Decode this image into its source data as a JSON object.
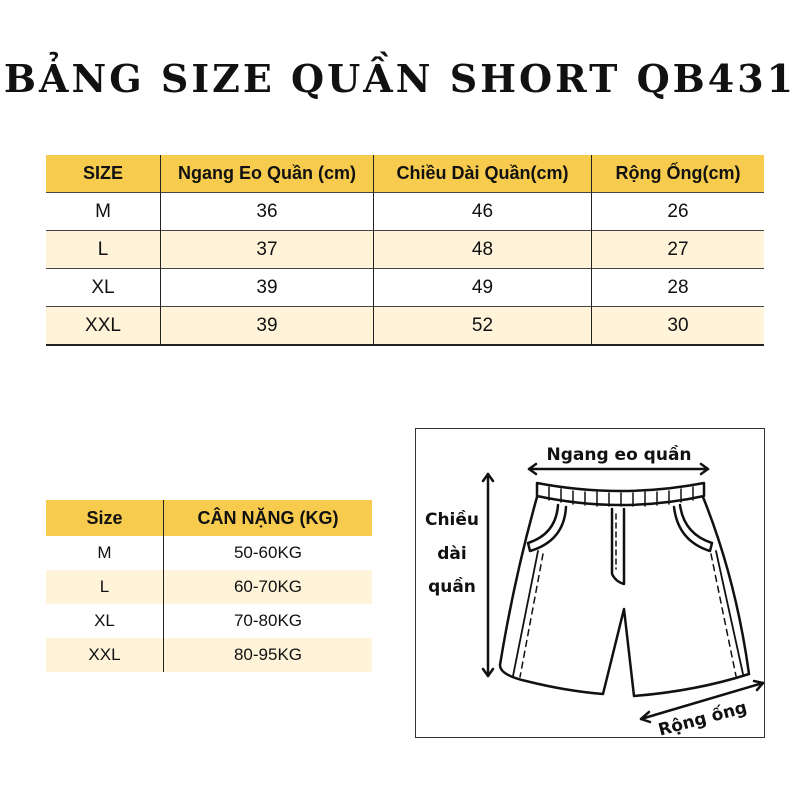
{
  "title": "BẢNG SIZE QUẦN SHORT QB431",
  "size_table": {
    "headers": [
      "SIZE",
      "Ngang Eo Quần (cm)",
      "Chiều Dài Quần(cm)",
      "Rộng Ống(cm)"
    ],
    "rows": [
      [
        "M",
        "36",
        "46",
        "26"
      ],
      [
        "L",
        "37",
        "48",
        "27"
      ],
      [
        "XL",
        "39",
        "49",
        "28"
      ],
      [
        "XXL",
        "39",
        "52",
        "30"
      ]
    ]
  },
  "weight_table": {
    "headers": [
      "Size",
      "CÂN NẶNG (KG)"
    ],
    "rows": [
      [
        "M",
        "50-60KG"
      ],
      [
        "L",
        "60-70KG"
      ],
      [
        "XL",
        "70-80KG"
      ],
      [
        "XXL",
        "80-95KG"
      ]
    ]
  },
  "diagram": {
    "waist_label": "Ngang eo quần",
    "length_label": [
      "Chiều",
      "dài",
      "quần"
    ],
    "leg_label": "Rộng ống"
  },
  "colors": {
    "header": "#F7CB4D",
    "alt_row": "#FFF4DA"
  }
}
